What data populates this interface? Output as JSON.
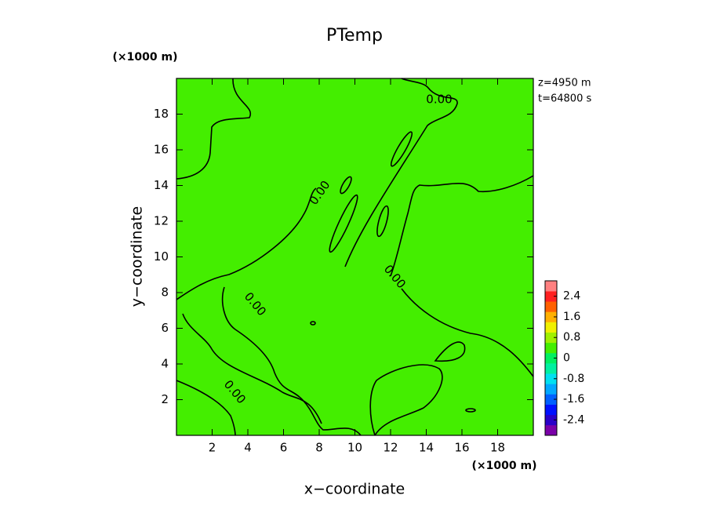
{
  "chart_data": {
    "type": "contour",
    "title": "PTemp",
    "x_label": "x−coordinate",
    "y_label": "y−coordinate",
    "x_unit": "(×1000 m)",
    "y_unit": "(×1000 m)",
    "annotations": [
      "z=4950 m",
      "t=64800 s"
    ],
    "contour_labels": [
      "0.00",
      "0.00",
      "0.00",
      "0.00",
      "0.00"
    ],
    "field_color": "#44ee00",
    "line_color": "#000000",
    "xlim": [
      0,
      20
    ],
    "xticks": [
      2,
      4,
      6,
      8,
      10,
      12,
      14,
      16,
      18
    ],
    "ylim": [
      0,
      20
    ],
    "yticks": [
      2,
      4,
      6,
      8,
      10,
      12,
      14,
      16,
      18
    ],
    "colorbar": {
      "clim": [
        -3,
        3
      ],
      "ticks": [
        2.4,
        1.6,
        0.8,
        0,
        -0.8,
        -1.6,
        -2.4
      ],
      "colors": [
        "#7a00a8",
        "#2a00c8",
        "#0010ff",
        "#0060ff",
        "#00a8ff",
        "#00e0f0",
        "#00f0a0",
        "#00f060",
        "#44ee00",
        "#a0f000",
        "#f0f000",
        "#ffb000",
        "#ff6000",
        "#ff2020",
        "#ff8080"
      ]
    }
  }
}
